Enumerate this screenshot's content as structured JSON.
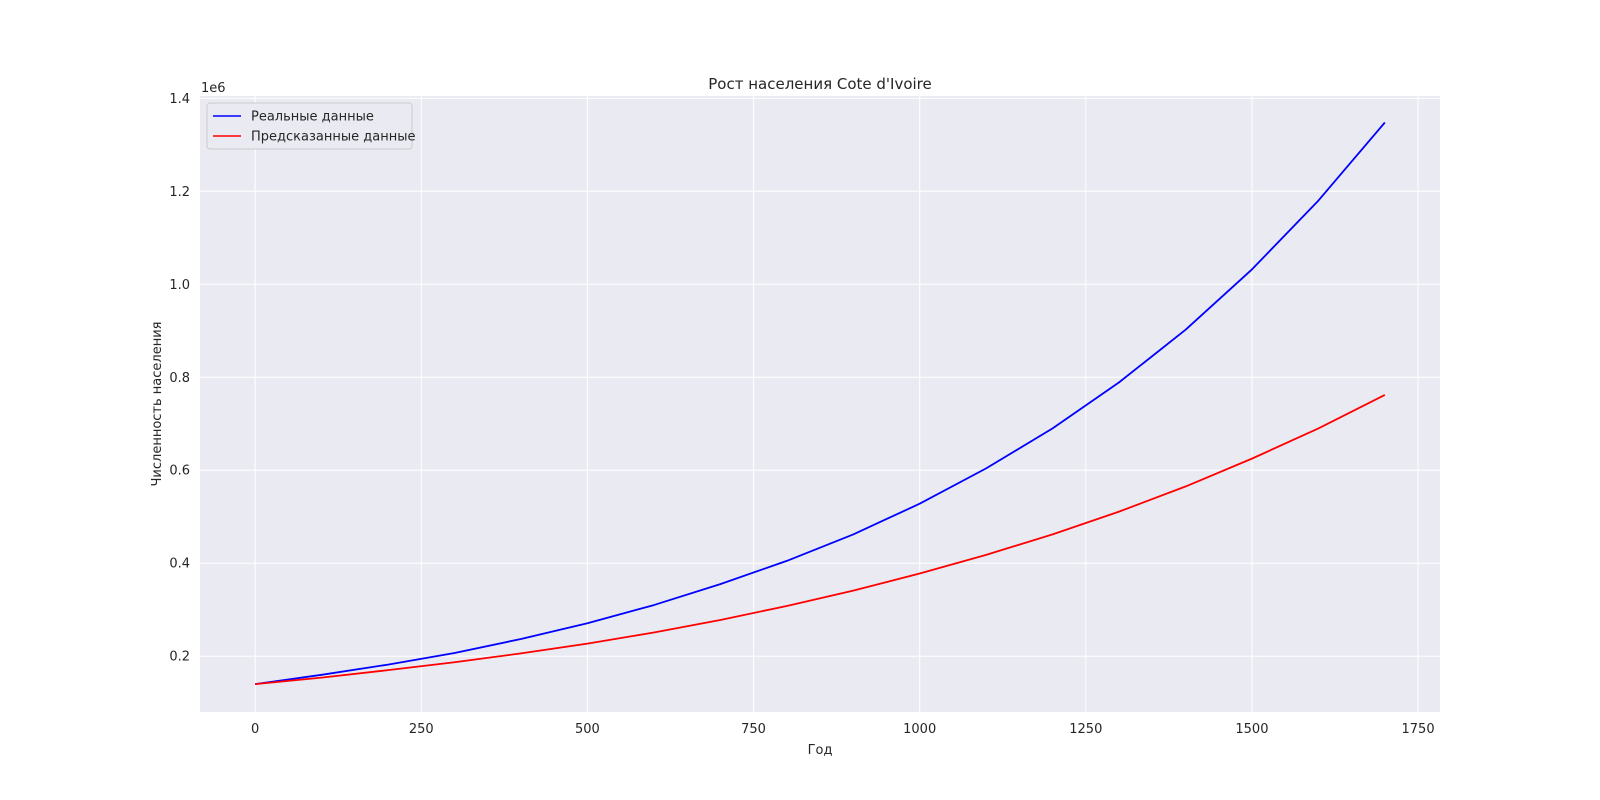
{
  "chart_data": {
    "type": "line",
    "title": "Рост населения Cote d'Ivoire",
    "xlabel": "Год",
    "ylabel": "Численность населения",
    "y_offset_label": "1e6",
    "xlim": [
      -83,
      1783
    ],
    "ylim": [
      0.08,
      1.405
    ],
    "y_scale_factor": 1000000,
    "grid": true,
    "legend_position": "top-left",
    "x_ticks": [
      0,
      250,
      500,
      750,
      1000,
      1250,
      1500,
      1750
    ],
    "x_tick_labels": [
      "0",
      "250",
      "500",
      "750",
      "1000",
      "1250",
      "1500",
      "1750"
    ],
    "y_ticks": [
      0.2,
      0.4,
      0.6,
      0.8,
      1.0,
      1.2,
      1.4
    ],
    "y_tick_labels": [
      "0.2",
      "0.4",
      "0.6",
      "0.8",
      "1.0",
      "1.2",
      "1.4"
    ],
    "x": [
      0,
      100,
      200,
      300,
      400,
      500,
      600,
      700,
      800,
      900,
      1000,
      1100,
      1200,
      1300,
      1400,
      1500,
      1600,
      1700
    ],
    "series": [
      {
        "name": "Реальные данные",
        "color": "#0000ff",
        "values": [
          0.14,
          0.16,
          0.182,
          0.207,
          0.237,
          0.271,
          0.31,
          0.355,
          0.405,
          0.462,
          0.528,
          0.604,
          0.69,
          0.789,
          0.902,
          1.032,
          1.18,
          1.348
        ]
      },
      {
        "name": "Предсказанные данные",
        "color": "#ff0000",
        "values": [
          0.14,
          0.154,
          0.17,
          0.187,
          0.206,
          0.227,
          0.251,
          0.278,
          0.308,
          0.341,
          0.378,
          0.418,
          0.462,
          0.511,
          0.565,
          0.625,
          0.69,
          0.762
        ]
      }
    ]
  }
}
